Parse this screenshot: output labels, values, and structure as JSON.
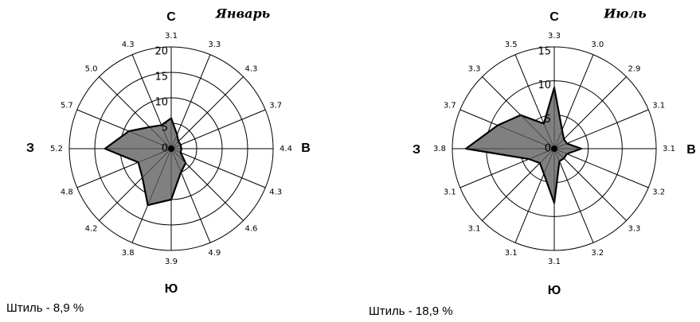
{
  "chart_data": [
    {
      "type": "radar",
      "title": "Январь",
      "directions": [
        "С",
        "В",
        "Ю",
        "З"
      ],
      "rlim": [
        0,
        20
      ],
      "radial_ticks": [
        "0",
        "5",
        "10",
        "15",
        "20"
      ],
      "sector_labels": [
        "3.1",
        "3.3",
        "4.3",
        "3.7",
        "4.4",
        "4.3",
        "4.6",
        "4.9",
        "3.9",
        "3.8",
        "4.2",
        "4.8",
        "5.2",
        "5.7",
        "5.0",
        "4.3"
      ],
      "values": [
        6,
        3,
        2,
        2,
        2,
        2,
        4,
        5,
        10,
        12,
        8,
        7,
        13,
        9,
        6,
        5
      ],
      "calm": "Штиль - 8,9 %",
      "grid": true,
      "fill_color": "#808080"
    },
    {
      "type": "radar",
      "title": "Июль",
      "directions": [
        "С",
        "В",
        "Ю",
        "З"
      ],
      "rlim": [
        0,
        15
      ],
      "radial_ticks": [
        "0",
        "5",
        "10",
        "15"
      ],
      "sector_labels": [
        "3.3",
        "3.0",
        "2.9",
        "3.1",
        "3.1",
        "3.2",
        "3.3",
        "3.2",
        "3.1",
        "3.1",
        "3.1",
        "3.1",
        "3.8",
        "3.7",
        "3.3",
        "3.5"
      ],
      "values": [
        9,
        3,
        2,
        2,
        4,
        2,
        2,
        2,
        8,
        4,
        3,
        4,
        13,
        9,
        7,
        4
      ],
      "calm": "Штиль - 18,9 %",
      "grid": true,
      "fill_color": "#808080"
    }
  ]
}
